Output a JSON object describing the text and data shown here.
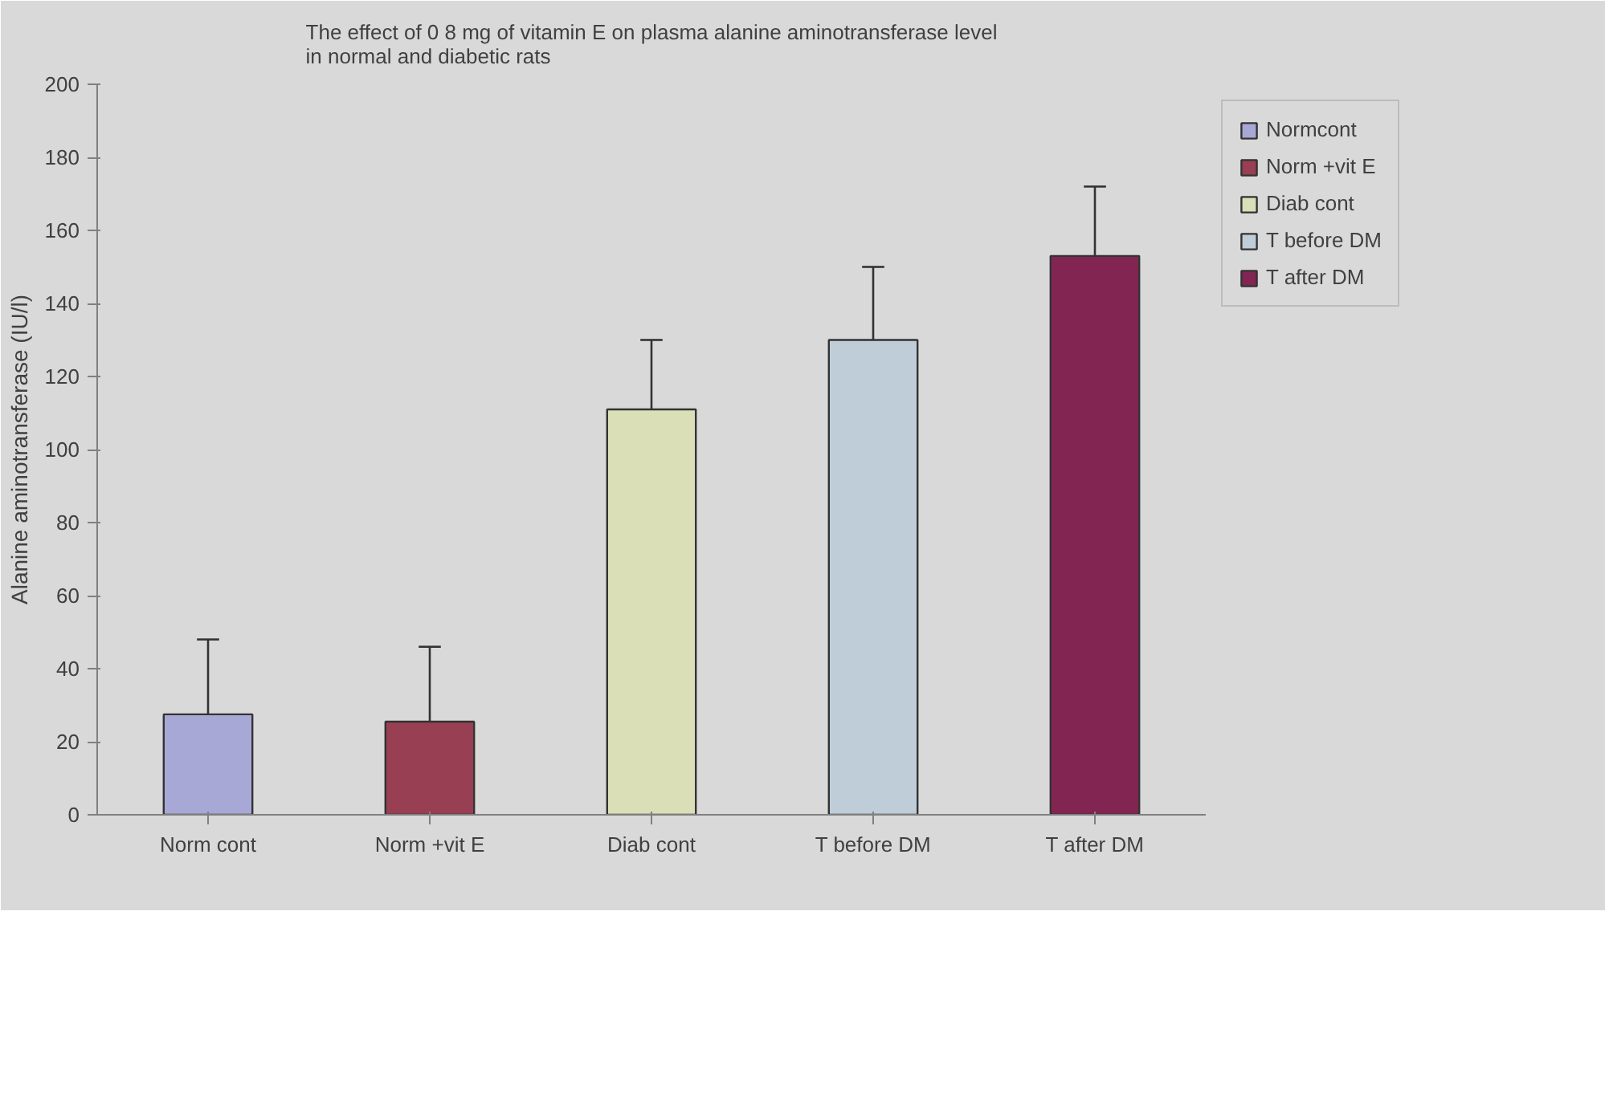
{
  "chart_data": {
    "type": "bar",
    "title": "The effect of 0 8 mg of vitamin E on plasma alanine aminotransferase level\nin normal and diabetic rats",
    "ylabel": "Alanine aminotransferase (IU/l)",
    "categories": [
      "Norm cont",
      "Norm +vit E",
      "Diab cont",
      "T before DM",
      "T after DM"
    ],
    "series": [
      {
        "name": "Normcont",
        "color": "#a8a8d6",
        "values": [
          27.5,
          null,
          null,
          null,
          null
        ],
        "errors": [
          [
            27.5,
            48
          ],
          null,
          null,
          null,
          null
        ]
      },
      {
        "name": "Norm +vit E",
        "color": "#983f53",
        "values": [
          null,
          25.5,
          null,
          null,
          null
        ],
        "errors": [
          null,
          [
            25.5,
            46
          ],
          null,
          null,
          null
        ]
      },
      {
        "name": "Diab cont",
        "color": "#dadfb8",
        "values": [
          null,
          null,
          111,
          null,
          null
        ],
        "errors": [
          null,
          null,
          [
            111,
            130
          ],
          null,
          null
        ]
      },
      {
        "name": "T before DM",
        "color": "#bfcdd8",
        "values": [
          null,
          null,
          null,
          130,
          null
        ],
        "errors": [
          null,
          null,
          null,
          [
            130,
            150
          ],
          null
        ]
      },
      {
        "name": "T after DM",
        "color": "#822553",
        "values": [
          null,
          null,
          null,
          null,
          153
        ],
        "errors": [
          null,
          null,
          null,
          null,
          [
            153,
            172
          ]
        ]
      }
    ],
    "ylim": [
      0,
      200
    ],
    "yticks": [
      0,
      20,
      40,
      60,
      80,
      100,
      120,
      140,
      160,
      180,
      200
    ],
    "grid": false,
    "legend": "top right"
  }
}
